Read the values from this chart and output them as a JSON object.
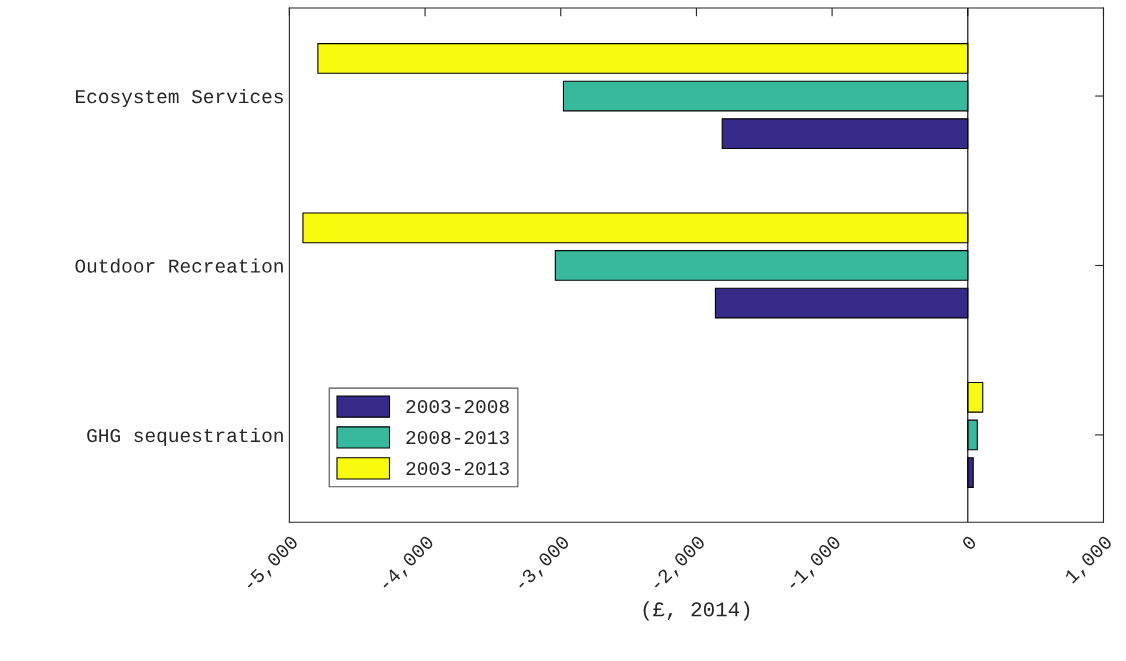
{
  "chart_data": {
    "type": "bar",
    "orientation": "horizontal",
    "xlabel": "(£, 2014)",
    "categories": [
      "Ecosystem Services",
      "Outdoor Recreation",
      "GHG sequestration"
    ],
    "series": [
      {
        "name": "2003-2008",
        "color": "#352a87",
        "values": [
          -1810,
          -1860,
          40
        ]
      },
      {
        "name": "2008-2013",
        "color": "#38b99e",
        "values": [
          -2980,
          -3040,
          70
        ]
      },
      {
        "name": "2003-2013",
        "color": "#f9fb0e",
        "values": [
          -4790,
          -4900,
          110
        ]
      }
    ],
    "xlim": [
      -5000,
      1000
    ],
    "xticks": [
      {
        "value": -5000,
        "label": "-5,000"
      },
      {
        "value": -4000,
        "label": "-4,000"
      },
      {
        "value": -3000,
        "label": "-3,000"
      },
      {
        "value": -2000,
        "label": "-2,000"
      },
      {
        "value": -1000,
        "label": "-1,000"
      },
      0,
      {
        "value": 1000,
        "label": "1,000"
      }
    ],
    "ref_lines": [
      {
        "axis": "x",
        "value": 0,
        "color": "#000000"
      }
    ],
    "grid": false,
    "legend": "bottom left"
  }
}
